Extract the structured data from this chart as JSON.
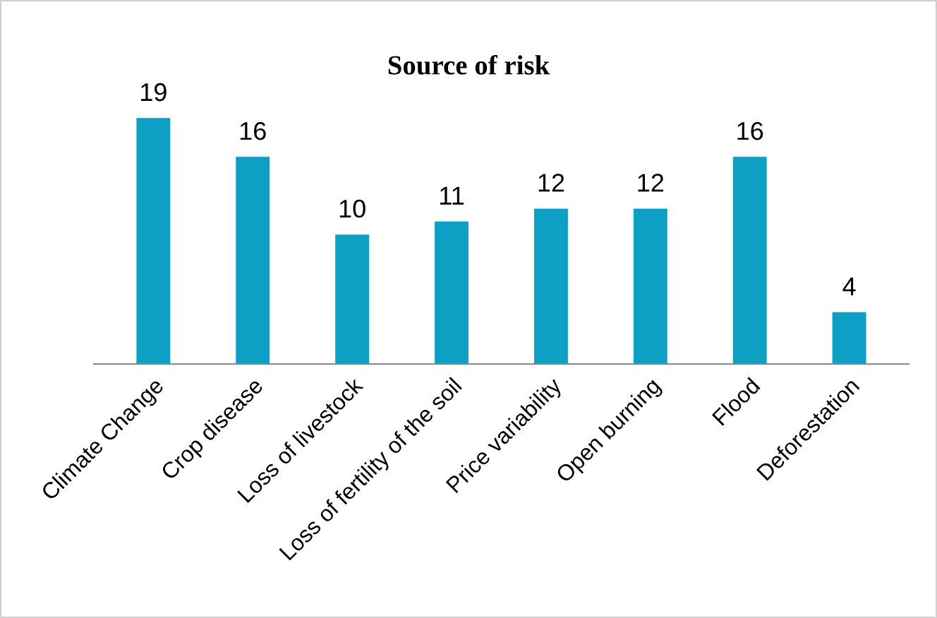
{
  "chart_data": {
    "type": "bar",
    "title": "Source of risk",
    "categories": [
      "Climate Change",
      "Crop disease",
      "Loss of livestock",
      "Loss of fertility of the soil",
      "Price variability",
      "Open burning",
      "Flood",
      "Deforestation"
    ],
    "values": [
      19,
      16,
      10,
      11,
      12,
      12,
      16,
      4
    ],
    "color": "#0e9fc4",
    "data_labels": true,
    "grid": false,
    "legend": false
  }
}
